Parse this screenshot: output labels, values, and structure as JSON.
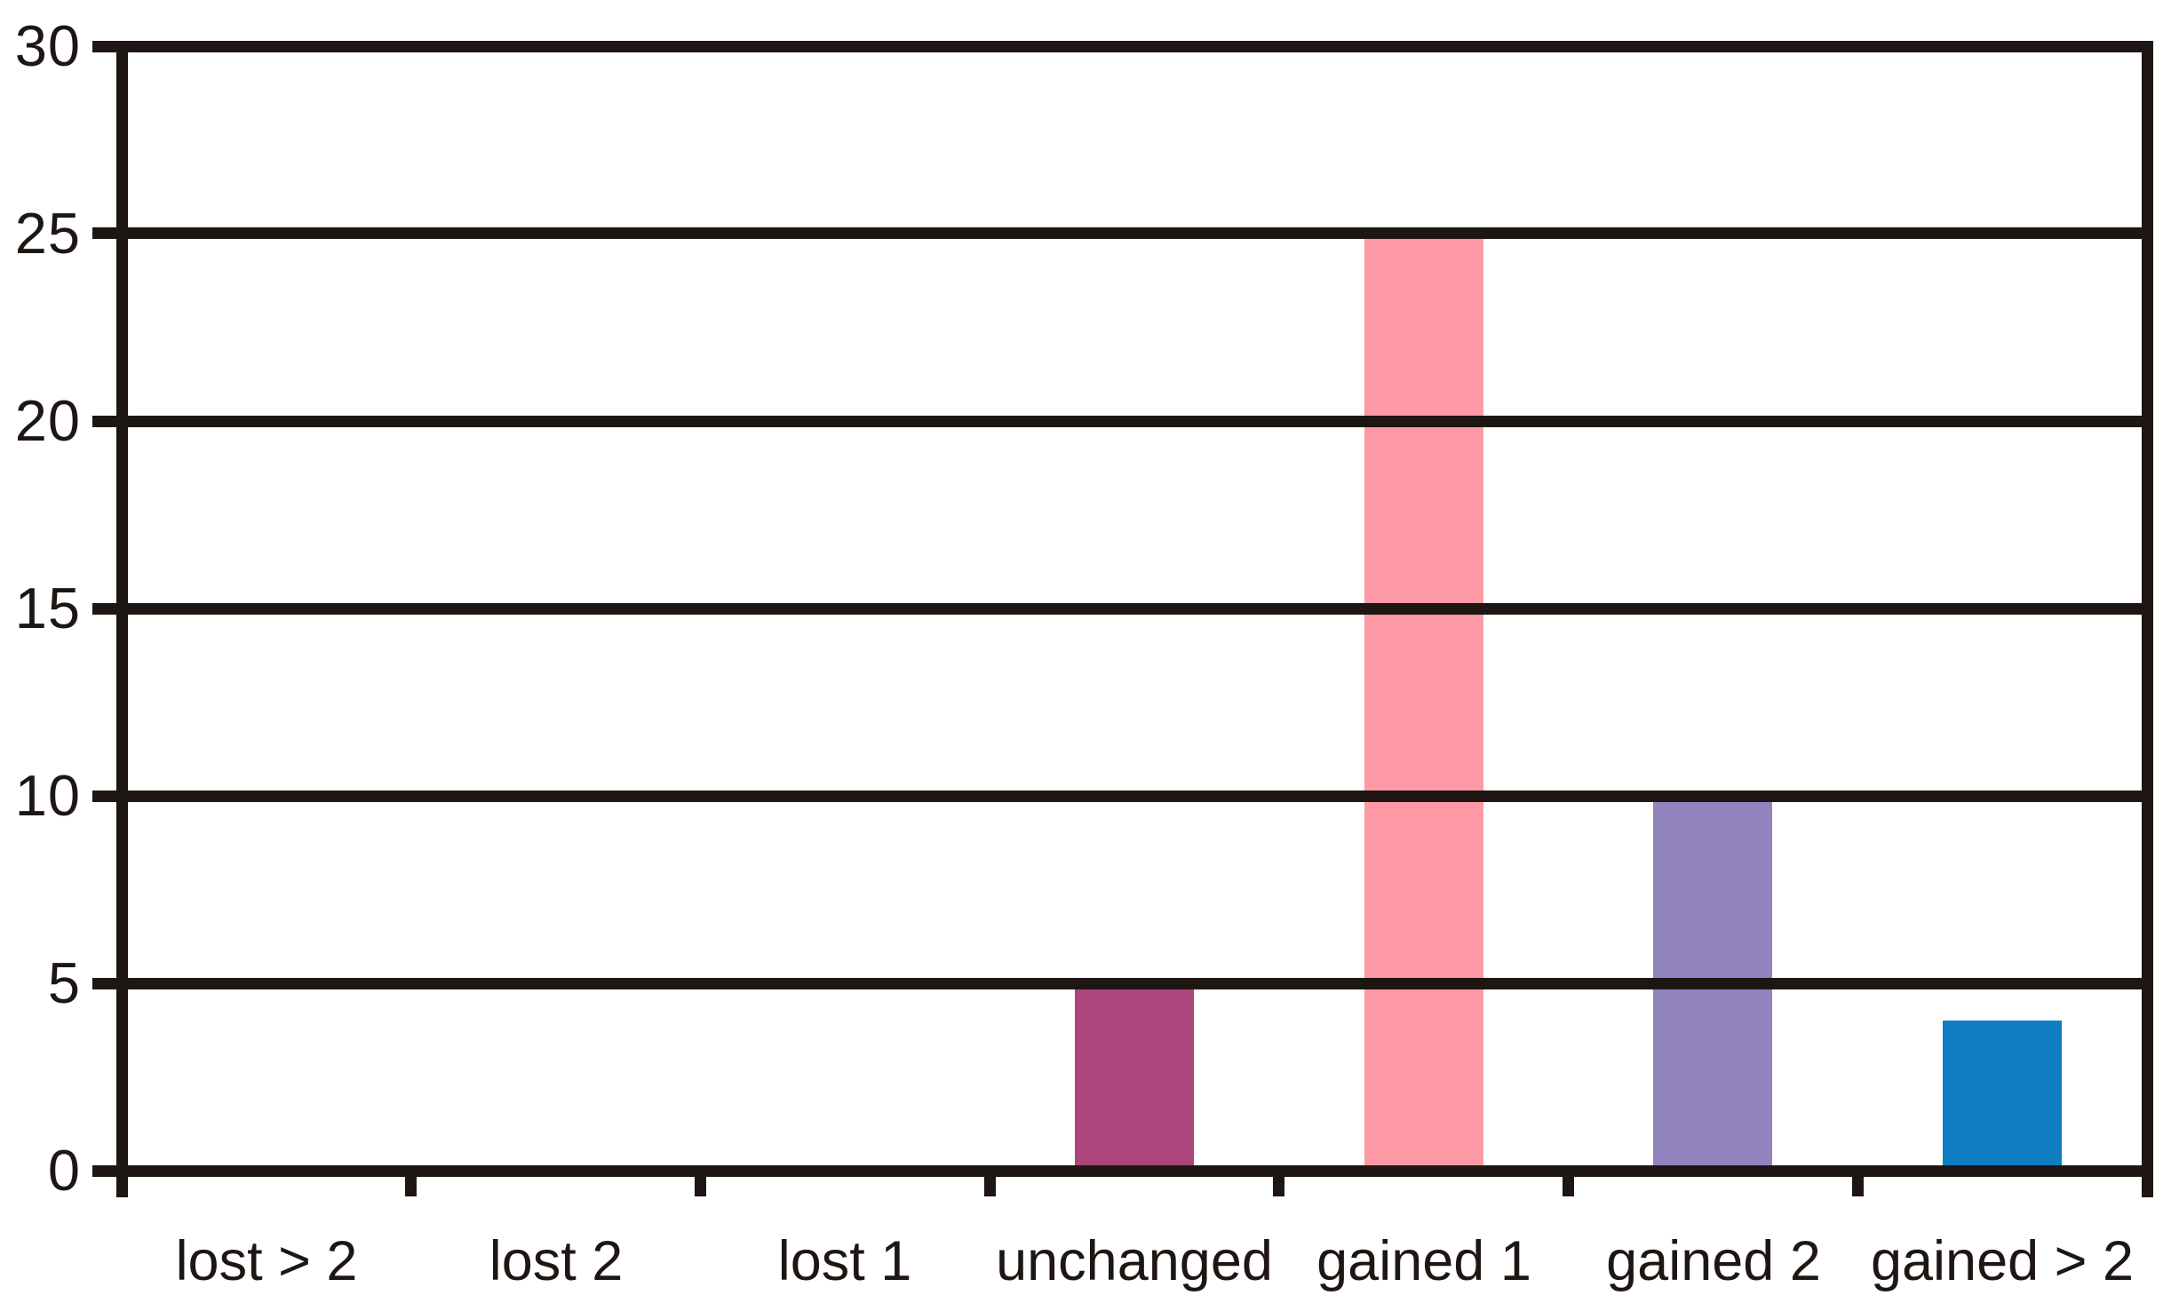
{
  "chart_data": {
    "type": "bar",
    "title": "",
    "xlabel": "",
    "ylabel": "",
    "categories": [
      "lost > 2",
      "lost 2",
      "lost 1",
      "unchanged",
      "gained 1",
      "gained 2",
      "gained > 2"
    ],
    "values": [
      0,
      0,
      0,
      5,
      25,
      10,
      4
    ],
    "colors": [
      null,
      null,
      null,
      "#AD447C",
      "#FC99A4",
      "#9184BE",
      "#0E7DC2"
    ],
    "ylim": [
      0,
      30
    ],
    "yticks": [
      0,
      5,
      10,
      15,
      20,
      25,
      30
    ],
    "grid": "horizontal",
    "legend": "none",
    "axis_color": "#1e1613",
    "background_color": "#ffffff"
  }
}
